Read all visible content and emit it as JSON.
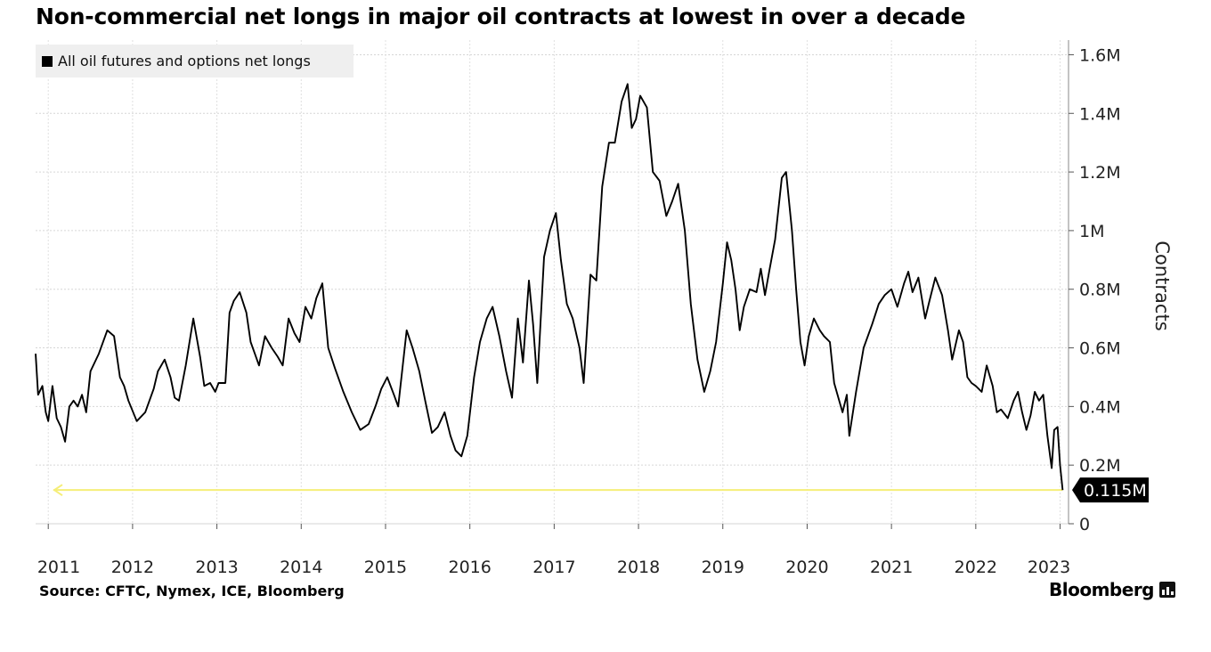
{
  "title": "Non-commercial net longs in major oil contracts at lowest in over a decade",
  "source": "Source: CFTC, Nymex, ICE, Bloomberg",
  "brand": "Bloomberg",
  "colors": {
    "line": "#000000",
    "reference": "#f5ee78",
    "grid": "#d6d6d6",
    "legend_bg": "#efefef",
    "callout_bg": "#000000"
  },
  "chart_data": {
    "type": "line",
    "title": "Non-commercial net longs in major oil contracts at lowest in over a decade",
    "ylabel": "Contracts",
    "ylim": [
      0,
      1650000
    ],
    "xlim": [
      2010.85,
      2023.1
    ],
    "grid": true,
    "legend_position": "top-left",
    "x_ticks": [
      2011,
      2012,
      2013,
      2014,
      2015,
      2016,
      2017,
      2018,
      2019,
      2020,
      2021,
      2022,
      2023
    ],
    "y_ticks": [
      {
        "value": 0,
        "label": "0"
      },
      {
        "value": 200000,
        "label": "0.2M"
      },
      {
        "value": 400000,
        "label": "0.4M"
      },
      {
        "value": 600000,
        "label": "0.6M"
      },
      {
        "value": 800000,
        "label": "0.8M"
      },
      {
        "value": 1000000,
        "label": "1M"
      },
      {
        "value": 1200000,
        "label": "1.2M"
      },
      {
        "value": 1400000,
        "label": "1.4M"
      },
      {
        "value": 1600000,
        "label": "1.6M"
      }
    ],
    "last_value_label": "0.115M",
    "reference_value": 115000,
    "series": [
      {
        "name": "All oil futures and options net longs",
        "points": [
          [
            2010.85,
            580000
          ],
          [
            2010.88,
            440000
          ],
          [
            2010.93,
            470000
          ],
          [
            2010.97,
            380000
          ],
          [
            2011.0,
            350000
          ],
          [
            2011.05,
            470000
          ],
          [
            2011.1,
            360000
          ],
          [
            2011.15,
            330000
          ],
          [
            2011.2,
            280000
          ],
          [
            2011.25,
            400000
          ],
          [
            2011.3,
            420000
          ],
          [
            2011.35,
            400000
          ],
          [
            2011.4,
            440000
          ],
          [
            2011.45,
            380000
          ],
          [
            2011.5,
            520000
          ],
          [
            2011.6,
            580000
          ],
          [
            2011.7,
            660000
          ],
          [
            2011.78,
            640000
          ],
          [
            2011.85,
            500000
          ],
          [
            2011.9,
            470000
          ],
          [
            2011.95,
            420000
          ],
          [
            2012.05,
            350000
          ],
          [
            2012.15,
            380000
          ],
          [
            2012.25,
            460000
          ],
          [
            2012.3,
            520000
          ],
          [
            2012.38,
            560000
          ],
          [
            2012.45,
            500000
          ],
          [
            2012.5,
            430000
          ],
          [
            2012.55,
            420000
          ],
          [
            2012.63,
            540000
          ],
          [
            2012.72,
            700000
          ],
          [
            2012.8,
            570000
          ],
          [
            2012.85,
            470000
          ],
          [
            2012.92,
            480000
          ],
          [
            2012.98,
            450000
          ],
          [
            2013.02,
            480000
          ],
          [
            2013.1,
            480000
          ],
          [
            2013.15,
            720000
          ],
          [
            2013.2,
            760000
          ],
          [
            2013.27,
            790000
          ],
          [
            2013.35,
            720000
          ],
          [
            2013.4,
            620000
          ],
          [
            2013.45,
            580000
          ],
          [
            2013.5,
            540000
          ],
          [
            2013.57,
            640000
          ],
          [
            2013.65,
            600000
          ],
          [
            2013.72,
            570000
          ],
          [
            2013.78,
            540000
          ],
          [
            2013.85,
            700000
          ],
          [
            2013.92,
            650000
          ],
          [
            2013.98,
            620000
          ],
          [
            2014.05,
            740000
          ],
          [
            2014.12,
            700000
          ],
          [
            2014.18,
            770000
          ],
          [
            2014.25,
            820000
          ],
          [
            2014.32,
            600000
          ],
          [
            2014.4,
            530000
          ],
          [
            2014.5,
            450000
          ],
          [
            2014.6,
            380000
          ],
          [
            2014.7,
            320000
          ],
          [
            2014.8,
            340000
          ],
          [
            2014.88,
            400000
          ],
          [
            2014.95,
            460000
          ],
          [
            2015.02,
            500000
          ],
          [
            2015.1,
            440000
          ],
          [
            2015.15,
            400000
          ],
          [
            2015.25,
            660000
          ],
          [
            2015.32,
            600000
          ],
          [
            2015.4,
            520000
          ],
          [
            2015.47,
            420000
          ],
          [
            2015.55,
            310000
          ],
          [
            2015.62,
            330000
          ],
          [
            2015.7,
            380000
          ],
          [
            2015.77,
            300000
          ],
          [
            2015.83,
            250000
          ],
          [
            2015.9,
            230000
          ],
          [
            2015.97,
            300000
          ],
          [
            2016.05,
            500000
          ],
          [
            2016.12,
            620000
          ],
          [
            2016.2,
            700000
          ],
          [
            2016.27,
            740000
          ],
          [
            2016.35,
            640000
          ],
          [
            2016.43,
            520000
          ],
          [
            2016.5,
            430000
          ],
          [
            2016.57,
            700000
          ],
          [
            2016.63,
            550000
          ],
          [
            2016.7,
            830000
          ],
          [
            2016.75,
            680000
          ],
          [
            2016.8,
            480000
          ],
          [
            2016.88,
            910000
          ],
          [
            2016.95,
            1000000
          ],
          [
            2017.02,
            1060000
          ],
          [
            2017.08,
            900000
          ],
          [
            2017.15,
            750000
          ],
          [
            2017.22,
            700000
          ],
          [
            2017.3,
            600000
          ],
          [
            2017.35,
            480000
          ],
          [
            2017.43,
            850000
          ],
          [
            2017.5,
            830000
          ],
          [
            2017.57,
            1150000
          ],
          [
            2017.65,
            1300000
          ],
          [
            2017.72,
            1300000
          ],
          [
            2017.8,
            1440000
          ],
          [
            2017.87,
            1500000
          ],
          [
            2017.92,
            1350000
          ],
          [
            2017.97,
            1380000
          ],
          [
            2018.02,
            1460000
          ],
          [
            2018.1,
            1420000
          ],
          [
            2018.17,
            1200000
          ],
          [
            2018.25,
            1170000
          ],
          [
            2018.33,
            1050000
          ],
          [
            2018.4,
            1100000
          ],
          [
            2018.47,
            1160000
          ],
          [
            2018.55,
            1000000
          ],
          [
            2018.62,
            750000
          ],
          [
            2018.7,
            560000
          ],
          [
            2018.78,
            450000
          ],
          [
            2018.85,
            520000
          ],
          [
            2018.92,
            620000
          ],
          [
            2019.0,
            820000
          ],
          [
            2019.05,
            960000
          ],
          [
            2019.1,
            900000
          ],
          [
            2019.15,
            800000
          ],
          [
            2019.2,
            660000
          ],
          [
            2019.25,
            740000
          ],
          [
            2019.32,
            800000
          ],
          [
            2019.4,
            790000
          ],
          [
            2019.45,
            870000
          ],
          [
            2019.5,
            780000
          ],
          [
            2019.55,
            860000
          ],
          [
            2019.62,
            970000
          ],
          [
            2019.7,
            1180000
          ],
          [
            2019.75,
            1200000
          ],
          [
            2019.82,
            1000000
          ],
          [
            2019.87,
            800000
          ],
          [
            2019.92,
            620000
          ],
          [
            2019.97,
            540000
          ],
          [
            2020.02,
            640000
          ],
          [
            2020.08,
            700000
          ],
          [
            2020.15,
            660000
          ],
          [
            2020.2,
            640000
          ],
          [
            2020.27,
            620000
          ],
          [
            2020.32,
            480000
          ],
          [
            2020.37,
            430000
          ],
          [
            2020.42,
            380000
          ],
          [
            2020.47,
            440000
          ],
          [
            2020.5,
            300000
          ],
          [
            2020.58,
            450000
          ],
          [
            2020.67,
            600000
          ],
          [
            2020.77,
            680000
          ],
          [
            2020.85,
            750000
          ],
          [
            2020.92,
            780000
          ],
          [
            2021.0,
            800000
          ],
          [
            2021.07,
            740000
          ],
          [
            2021.15,
            820000
          ],
          [
            2021.2,
            860000
          ],
          [
            2021.25,
            790000
          ],
          [
            2021.32,
            840000
          ],
          [
            2021.4,
            700000
          ],
          [
            2021.45,
            760000
          ],
          [
            2021.52,
            840000
          ],
          [
            2021.6,
            780000
          ],
          [
            2021.67,
            660000
          ],
          [
            2021.72,
            560000
          ],
          [
            2021.8,
            660000
          ],
          [
            2021.85,
            620000
          ],
          [
            2021.9,
            500000
          ],
          [
            2021.95,
            480000
          ],
          [
            2022.0,
            470000
          ],
          [
            2022.07,
            450000
          ],
          [
            2022.13,
            540000
          ],
          [
            2022.2,
            470000
          ],
          [
            2022.25,
            380000
          ],
          [
            2022.3,
            390000
          ],
          [
            2022.38,
            360000
          ],
          [
            2022.45,
            420000
          ],
          [
            2022.5,
            450000
          ],
          [
            2022.55,
            380000
          ],
          [
            2022.6,
            320000
          ],
          [
            2022.65,
            370000
          ],
          [
            2022.7,
            450000
          ],
          [
            2022.75,
            420000
          ],
          [
            2022.8,
            440000
          ],
          [
            2022.85,
            300000
          ],
          [
            2022.9,
            190000
          ],
          [
            2022.93,
            320000
          ],
          [
            2022.97,
            330000
          ],
          [
            2023.0,
            200000
          ],
          [
            2023.03,
            115000
          ]
        ]
      }
    ]
  }
}
